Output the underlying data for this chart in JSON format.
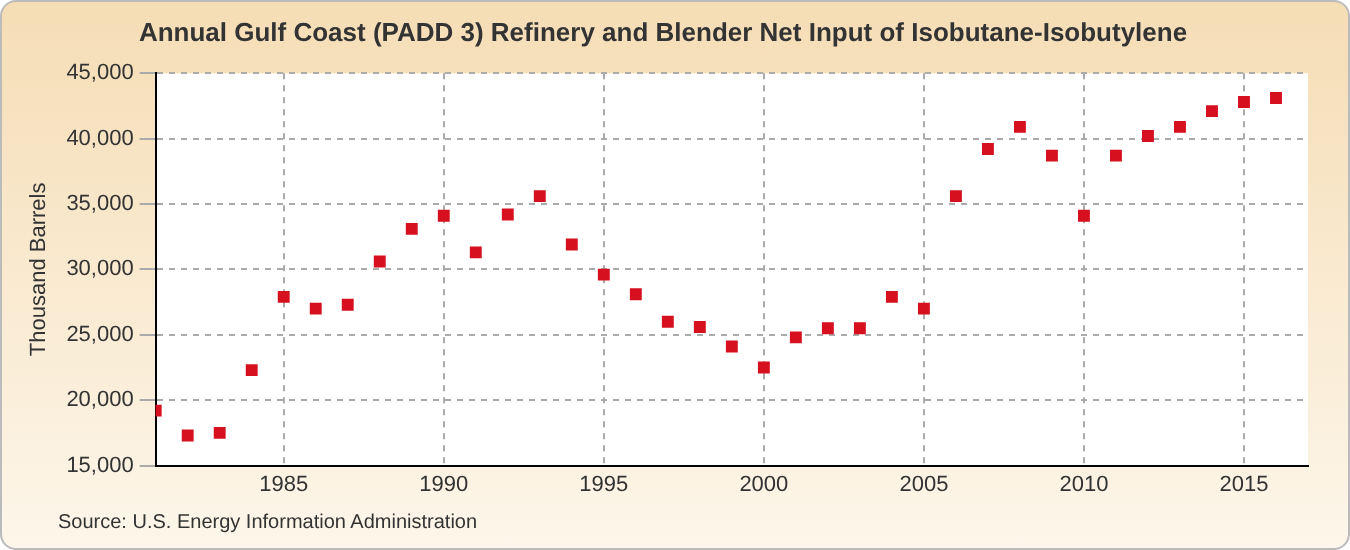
{
  "chart_data": {
    "type": "scatter",
    "title": "Annual Gulf Coast (PADD 3) Refinery and Blender Net Input of Isobutane-Isobutylene",
    "ylabel": "Thousand Barrels",
    "annotations": [
      "Source: U.S. Energy Information Administration"
    ],
    "x": [
      1981,
      1982,
      1983,
      1984,
      1985,
      1986,
      1987,
      1988,
      1989,
      1990,
      1991,
      1992,
      1993,
      1994,
      1995,
      1996,
      1997,
      1998,
      1999,
      2000,
      2001,
      2002,
      2003,
      2004,
      2005,
      2006,
      2007,
      2008,
      2009,
      2010,
      2011,
      2012,
      2013,
      2014,
      2015,
      2016
    ],
    "series": [
      {
        "color": "#d7101f",
        "values": [
          19200,
          17300,
          17500,
          22300,
          27900,
          27000,
          27300,
          30600,
          33100,
          34100,
          31300,
          34200,
          35600,
          31900,
          29600,
          28100,
          26000,
          25600,
          24100,
          22500,
          24800,
          25500,
          25500,
          27900,
          27000,
          35600,
          39200,
          40900,
          38700,
          34100,
          38700,
          40200,
          40900,
          42100,
          42800,
          43100
        ]
      }
    ],
    "xlim": [
      1981,
      2017
    ],
    "xticks": [
      1985,
      1990,
      1995,
      2000,
      2005,
      2010,
      2015
    ],
    "ylim": [
      15000,
      45000
    ],
    "yticks": [
      {
        "value": 15000,
        "label": "15,000"
      },
      {
        "value": 20000,
        "label": "20,000"
      },
      {
        "value": 25000,
        "label": "25,000"
      },
      {
        "value": 30000,
        "label": "30,000"
      },
      {
        "value": 35000,
        "label": "35,000"
      },
      {
        "value": 40000,
        "label": "40,000"
      },
      {
        "value": 45000,
        "label": "45,000"
      }
    ],
    "grid": true,
    "legend": false,
    "marker": "square"
  }
}
